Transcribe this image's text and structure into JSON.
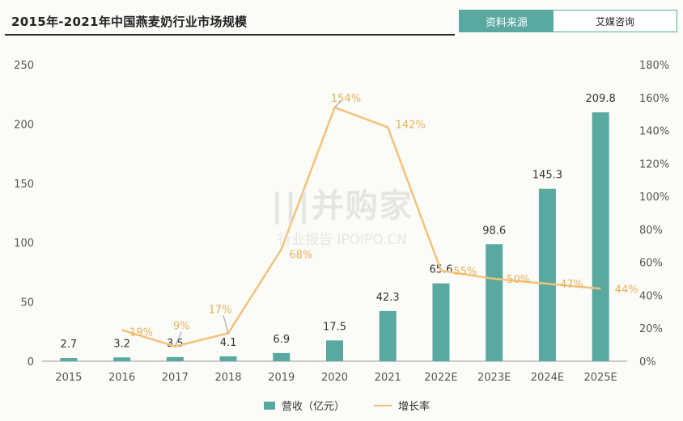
{
  "title": "2015年-2021年中国燕麦奶行业市场规模",
  "source": {
    "label": "资料来源",
    "value": "艾媒咨询"
  },
  "watermark": {
    "main": "|||并购家",
    "sub": "行业报告 IPOIPO.CN"
  },
  "legend": {
    "bar": "营收（亿元）",
    "line": "增长率"
  },
  "colors": {
    "bar": "#5aa9a1",
    "line": "#f2c27a",
    "rate_text": "#e6b25a"
  },
  "chart_data": {
    "type": "bar",
    "categories": [
      "2015",
      "2016",
      "2017",
      "2018",
      "2019",
      "2020",
      "2021",
      "2022E",
      "2023E",
      "2024E",
      "2025E"
    ],
    "series": [
      {
        "name": "营收（亿元）",
        "type": "bar",
        "axis": "left",
        "values": [
          2.7,
          3.2,
          3.5,
          4.1,
          6.9,
          17.5,
          42.3,
          65.6,
          98.6,
          145.3,
          209.8
        ],
        "labels": [
          "2.7",
          "3.2",
          "3.5",
          "4.1",
          "6.9",
          "17.5",
          "42.3",
          "65.6",
          "98.6",
          "145.3",
          "209.8"
        ]
      },
      {
        "name": "增长率",
        "type": "line",
        "axis": "right",
        "values": [
          null,
          19,
          9,
          17,
          68,
          154,
          142,
          55,
          50,
          47,
          44
        ],
        "labels": [
          null,
          "19%",
          "9%",
          "17%",
          "68%",
          "154%",
          "142%",
          "55%",
          "50%",
          "47%",
          "44%"
        ]
      }
    ],
    "left_axis": {
      "ylim": [
        0,
        250
      ],
      "ticks": [
        0,
        50,
        100,
        150,
        200,
        250
      ]
    },
    "right_axis": {
      "ylim": [
        0,
        180
      ],
      "ticks": [
        "0%",
        "20%",
        "40%",
        "60%",
        "80%",
        "100%",
        "120%",
        "140%",
        "160%",
        "180%"
      ]
    },
    "legend_position": "bottom-center",
    "grid": false
  }
}
